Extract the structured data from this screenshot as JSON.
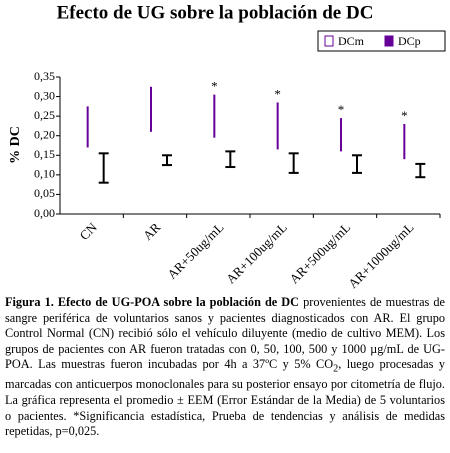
{
  "chart_data": {
    "type": "range-bar",
    "title": "Efecto de UG sobre la población de DC",
    "y_label": "% DC",
    "categories": [
      "CN",
      "AR",
      "AR+50ug/mL",
      "AR+100ug/mL",
      "AR+500ug/mL",
      "AR+1000ug/mL"
    ],
    "series": [
      {
        "name": "DCm",
        "color": "#000000",
        "values": [
          0.1175,
          0.1375,
          0.14,
          0.13,
          0.1275,
          0.111
        ],
        "errors": [
          0.0375,
          0.0125,
          0.02,
          0.025,
          0.0225,
          0.017
        ]
      },
      {
        "name": "DCp",
        "color": "#660099",
        "values": [
          0.2225,
          0.2675,
          0.25,
          0.225,
          0.2025,
          0.185
        ],
        "errors": [
          0.0525,
          0.0575,
          0.055,
          0.06,
          0.0425,
          0.045
        ],
        "significance": [
          null,
          null,
          "*",
          "*",
          "*",
          "*"
        ]
      }
    ],
    "ylim": [
      0,
      0.35
    ],
    "yticks": [
      {
        "value": 0,
        "label": "0,00"
      },
      {
        "value": 0.05,
        "label": "0,05"
      },
      {
        "value": 0.1,
        "label": "0,10"
      },
      {
        "value": 0.15,
        "label": "0,15"
      },
      {
        "value": 0.2,
        "label": "0,20"
      },
      {
        "value": 0.25,
        "label": "0,25"
      },
      {
        "value": 0.3,
        "label": "0,30"
      },
      {
        "value": 0.35,
        "label": "0,35"
      }
    ],
    "grid": false
  },
  "caption": {
    "label": "Figura 1.",
    "bold": "Efecto de UG-POA sobre la población de DC",
    "text_1": "provenientes de muestras de sangre periférica de voluntarios sanos y pacientes diagnosticados con AR. El grupo Control Normal (CN) recibió sólo el vehículo diluyente (medio de cultivo MEM). Los grupos de pacientes con AR fueron tratadas con 0, 50, 100, 500 y 1000 µg/mL de UG-POA. Las muestras fueron incubadas por 4h a 37ºC y 5% CO",
    "subscript": "2",
    "text_2": ", luego procesadas y marcadas con anticuerpos monoclonales para su posterior ensayo por citometría de flujo. La gráfica representa el promedio ± EEM (Error Estándar de la Media) de 5 voluntarios o pacientes. *Significancia estadística, Prueba de tendencias y análisis de medidas repetidas, p=0,025."
  }
}
